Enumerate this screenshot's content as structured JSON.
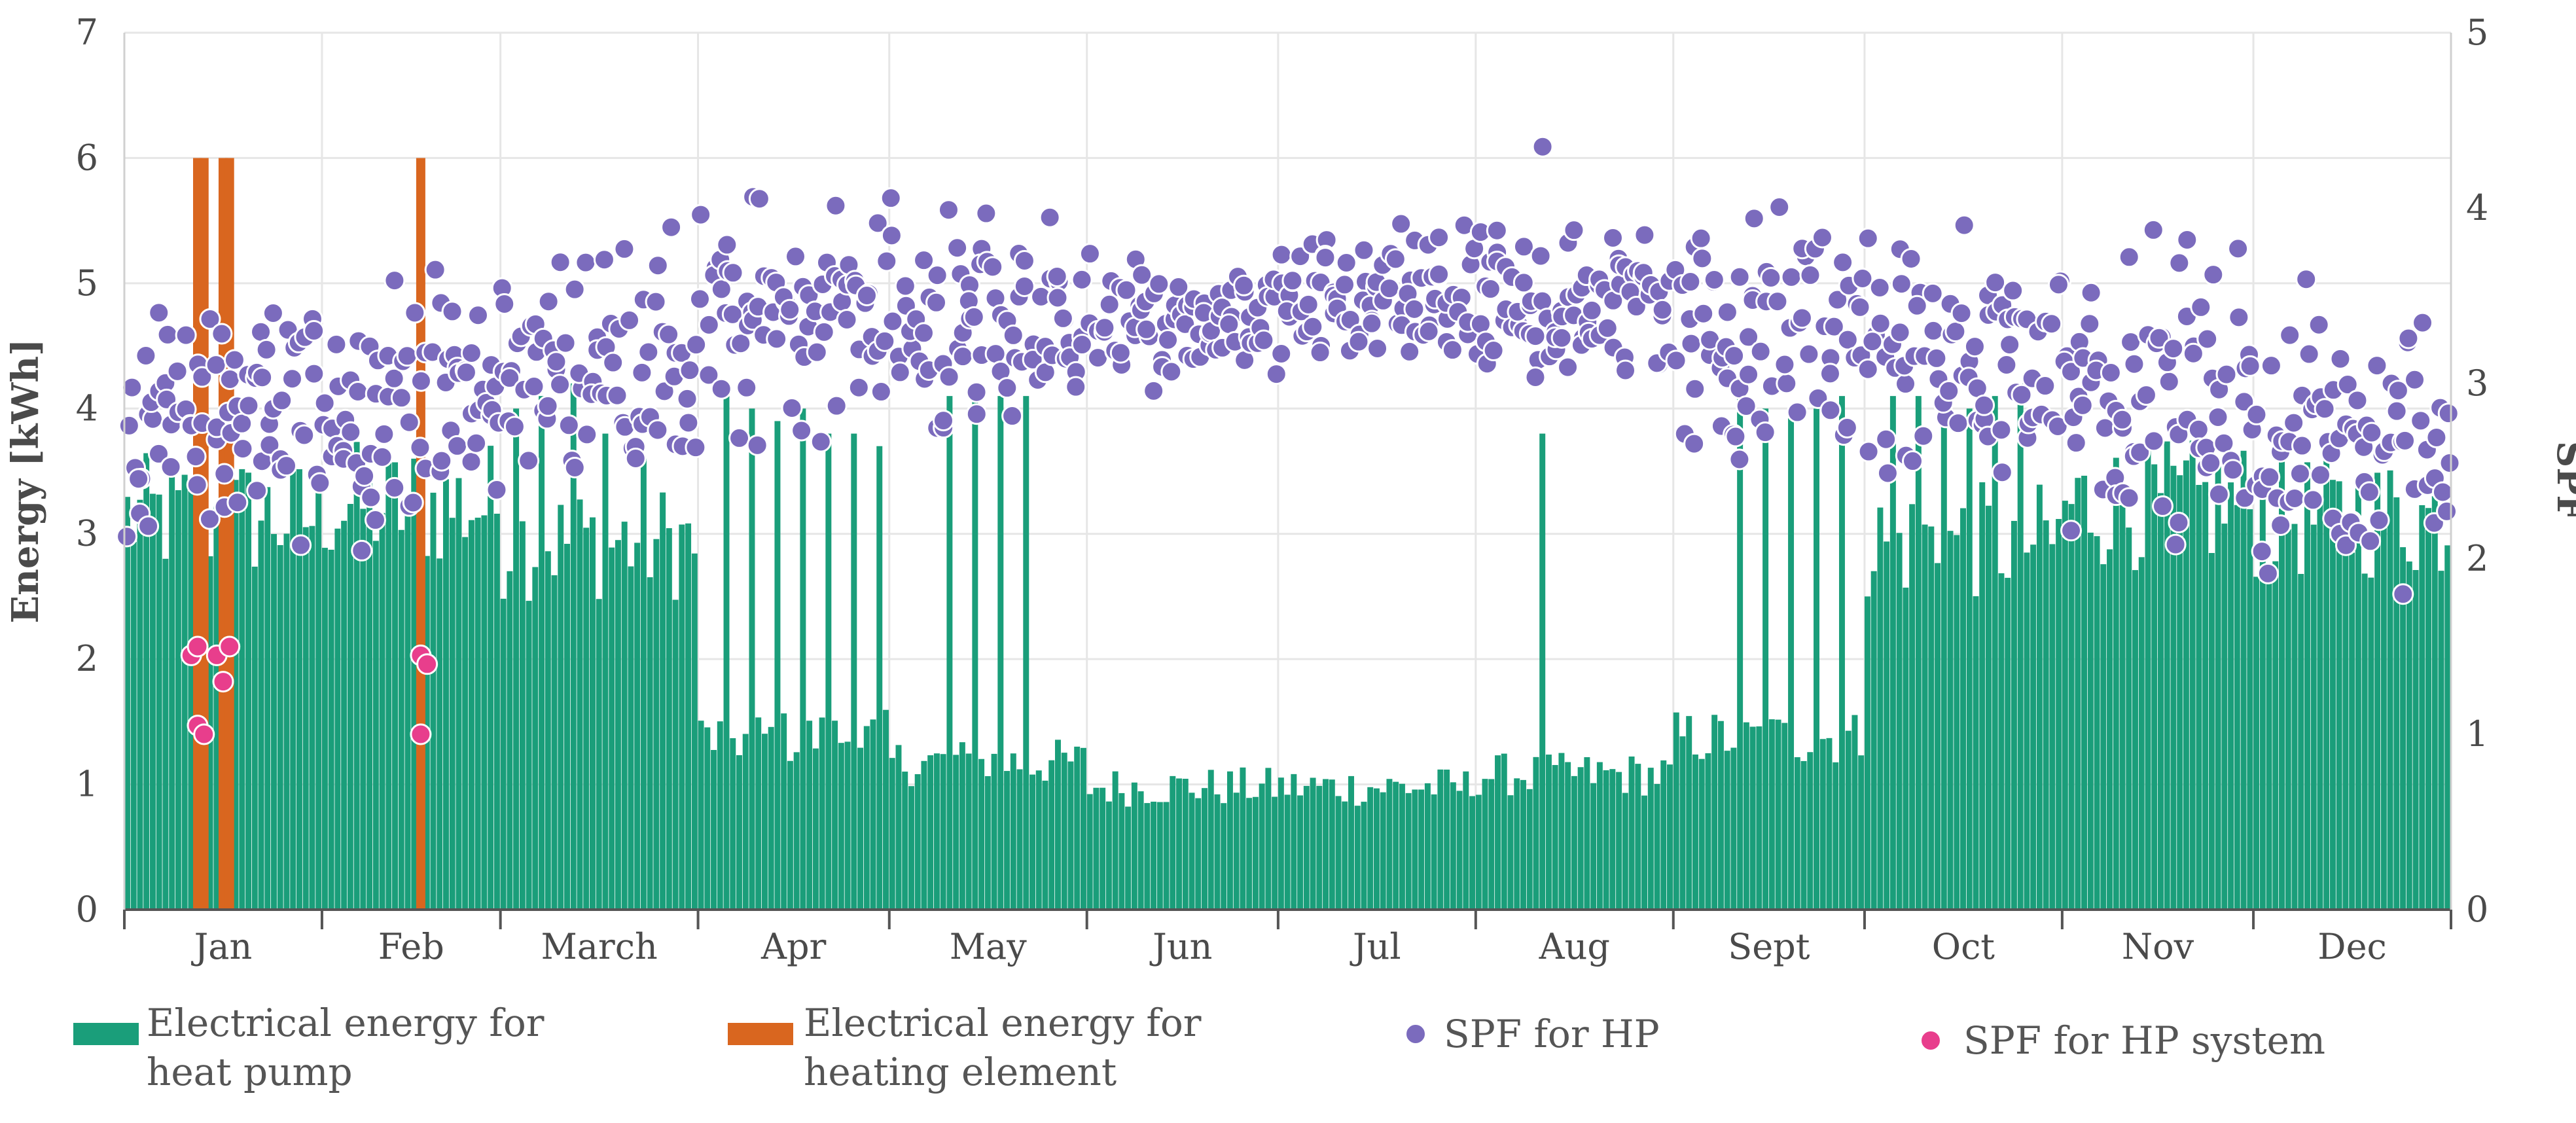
{
  "chart_data": {
    "type": "bar+scatter",
    "title": "",
    "xlabel": "",
    "ylabel": "Energy [kWh]",
    "y2label": "SPF",
    "ylim": [
      0,
      7
    ],
    "y2lim": [
      0,
      5
    ],
    "yticks": [
      "0",
      "1",
      "2",
      "3",
      "4",
      "5",
      "6",
      "7"
    ],
    "y2ticks": [
      "0",
      "1",
      "2",
      "3",
      "4",
      "5"
    ],
    "months": [
      "Jan",
      "Feb",
      "March",
      "Apr",
      "May",
      "Jun",
      "Jul",
      "Aug",
      "Sept",
      "Oct",
      "Nov",
      "Dec"
    ],
    "days_per_month": [
      31,
      28,
      31,
      30,
      31,
      30,
      31,
      31,
      30,
      31,
      30,
      31
    ],
    "grid": true,
    "series": [
      {
        "name": "Electrical energy for heat pump",
        "label_lines": [
          "Electrical energy for",
          "heat pump"
        ],
        "kind": "bar",
        "axis": "left",
        "color": "#1a9e7a",
        "approx_daily_profile": [
          {
            "day_start": 1,
            "day_end": 31,
            "value": 3.2
          },
          {
            "day_start": 32,
            "day_end": 59,
            "value": 3.3
          },
          {
            "day_start": 60,
            "day_end": 90,
            "value": 3.0
          },
          {
            "day_start": 91,
            "day_end": 120,
            "value": 1.4
          },
          {
            "day_start": 121,
            "day_end": 151,
            "value": 1.2
          },
          {
            "day_start": 152,
            "day_end": 181,
            "value": 1.0
          },
          {
            "day_start": 182,
            "day_end": 212,
            "value": 1.0
          },
          {
            "day_start": 213,
            "day_end": 243,
            "value": 1.1
          },
          {
            "day_start": 244,
            "day_end": 273,
            "value": 1.4
          },
          {
            "day_start": 274,
            "day_end": 304,
            "value": 3.0
          },
          {
            "day_start": 305,
            "day_end": 334,
            "value": 3.3
          },
          {
            "day_start": 335,
            "day_end": 365,
            "value": 3.2
          }
        ],
        "peaks": [
          {
            "day": 62,
            "value": 4.0
          },
          {
            "day": 66,
            "value": 4.1
          },
          {
            "day": 71,
            "value": 4.2
          },
          {
            "day": 76,
            "value": 3.8
          },
          {
            "day": 82,
            "value": 3.6
          },
          {
            "day": 95,
            "value": 4.1
          },
          {
            "day": 99,
            "value": 4.0
          },
          {
            "day": 103,
            "value": 3.9
          },
          {
            "day": 107,
            "value": 4.0
          },
          {
            "day": 111,
            "value": 3.8
          },
          {
            "day": 115,
            "value": 3.8
          },
          {
            "day": 119,
            "value": 3.7
          },
          {
            "day": 130,
            "value": 4.1
          },
          {
            "day": 134,
            "value": 4.1
          },
          {
            "day": 138,
            "value": 4.1
          },
          {
            "day": 142,
            "value": 4.1
          },
          {
            "day": 223,
            "value": 3.8
          },
          {
            "day": 254,
            "value": 4.1
          },
          {
            "day": 258,
            "value": 4.0
          },
          {
            "day": 262,
            "value": 4.0
          },
          {
            "day": 266,
            "value": 4.0
          },
          {
            "day": 270,
            "value": 4.1
          },
          {
            "day": 278,
            "value": 4.1
          },
          {
            "day": 282,
            "value": 4.1
          },
          {
            "day": 286,
            "value": 4.0
          },
          {
            "day": 290,
            "value": 4.0
          },
          {
            "day": 294,
            "value": 4.1
          },
          {
            "day": 298,
            "value": 4.2
          }
        ]
      },
      {
        "name": "Electrical energy for heating element",
        "label_lines": [
          "Electrical energy for",
          "heating element"
        ],
        "kind": "bar",
        "axis": "left",
        "color": "#d9661f",
        "points": [
          {
            "day": 12,
            "value": 6.0
          },
          {
            "day": 13,
            "value": 6.0
          },
          {
            "day": 16,
            "value": 6.0
          },
          {
            "day": 17,
            "value": 6.0
          },
          {
            "day": 47,
            "value": 6.0
          }
        ]
      },
      {
        "name": "SPF for HP",
        "label_lines": [
          "SPF for HP"
        ],
        "kind": "scatter",
        "axis": "right",
        "color": "#7b6bbd",
        "approx_daily_profile": [
          {
            "month": "Jan",
            "center": 2.8,
            "spread": 0.5
          },
          {
            "month": "Feb",
            "center": 2.9,
            "spread": 0.5
          },
          {
            "month": "March",
            "center": 3.1,
            "spread": 0.55
          },
          {
            "month": "Apr",
            "center": 3.4,
            "spread": 0.55
          },
          {
            "month": "May",
            "center": 3.3,
            "spread": 0.5
          },
          {
            "month": "Jun",
            "center": 3.35,
            "spread": 0.3
          },
          {
            "month": "Jul",
            "center": 3.45,
            "spread": 0.3
          },
          {
            "month": "Aug",
            "center": 3.45,
            "spread": 0.35
          },
          {
            "month": "Sept",
            "center": 3.3,
            "spread": 0.55
          },
          {
            "month": "Oct",
            "center": 3.1,
            "spread": 0.55
          },
          {
            "month": "Nov",
            "center": 3.0,
            "spread": 0.6
          },
          {
            "month": "Dec",
            "center": 2.7,
            "spread": 0.6
          }
        ],
        "max": {
          "day": 223,
          "value": 4.35
        }
      },
      {
        "name": "SPF for HP system",
        "label_lines": [
          "SPF for HP system"
        ],
        "kind": "scatter",
        "axis": "right",
        "color": "#e83e8c",
        "points": [
          {
            "day": 11,
            "value": 1.45
          },
          {
            "day": 12,
            "value": 1.05
          },
          {
            "day": 12,
            "value": 1.5
          },
          {
            "day": 13,
            "value": 1.0
          },
          {
            "day": 15,
            "value": 1.45
          },
          {
            "day": 16,
            "value": 1.3
          },
          {
            "day": 17,
            "value": 1.5
          },
          {
            "day": 47,
            "value": 1.45
          },
          {
            "day": 47,
            "value": 1.0
          },
          {
            "day": 48,
            "value": 1.4
          }
        ]
      }
    ],
    "legend": {
      "position": "bottom"
    }
  }
}
